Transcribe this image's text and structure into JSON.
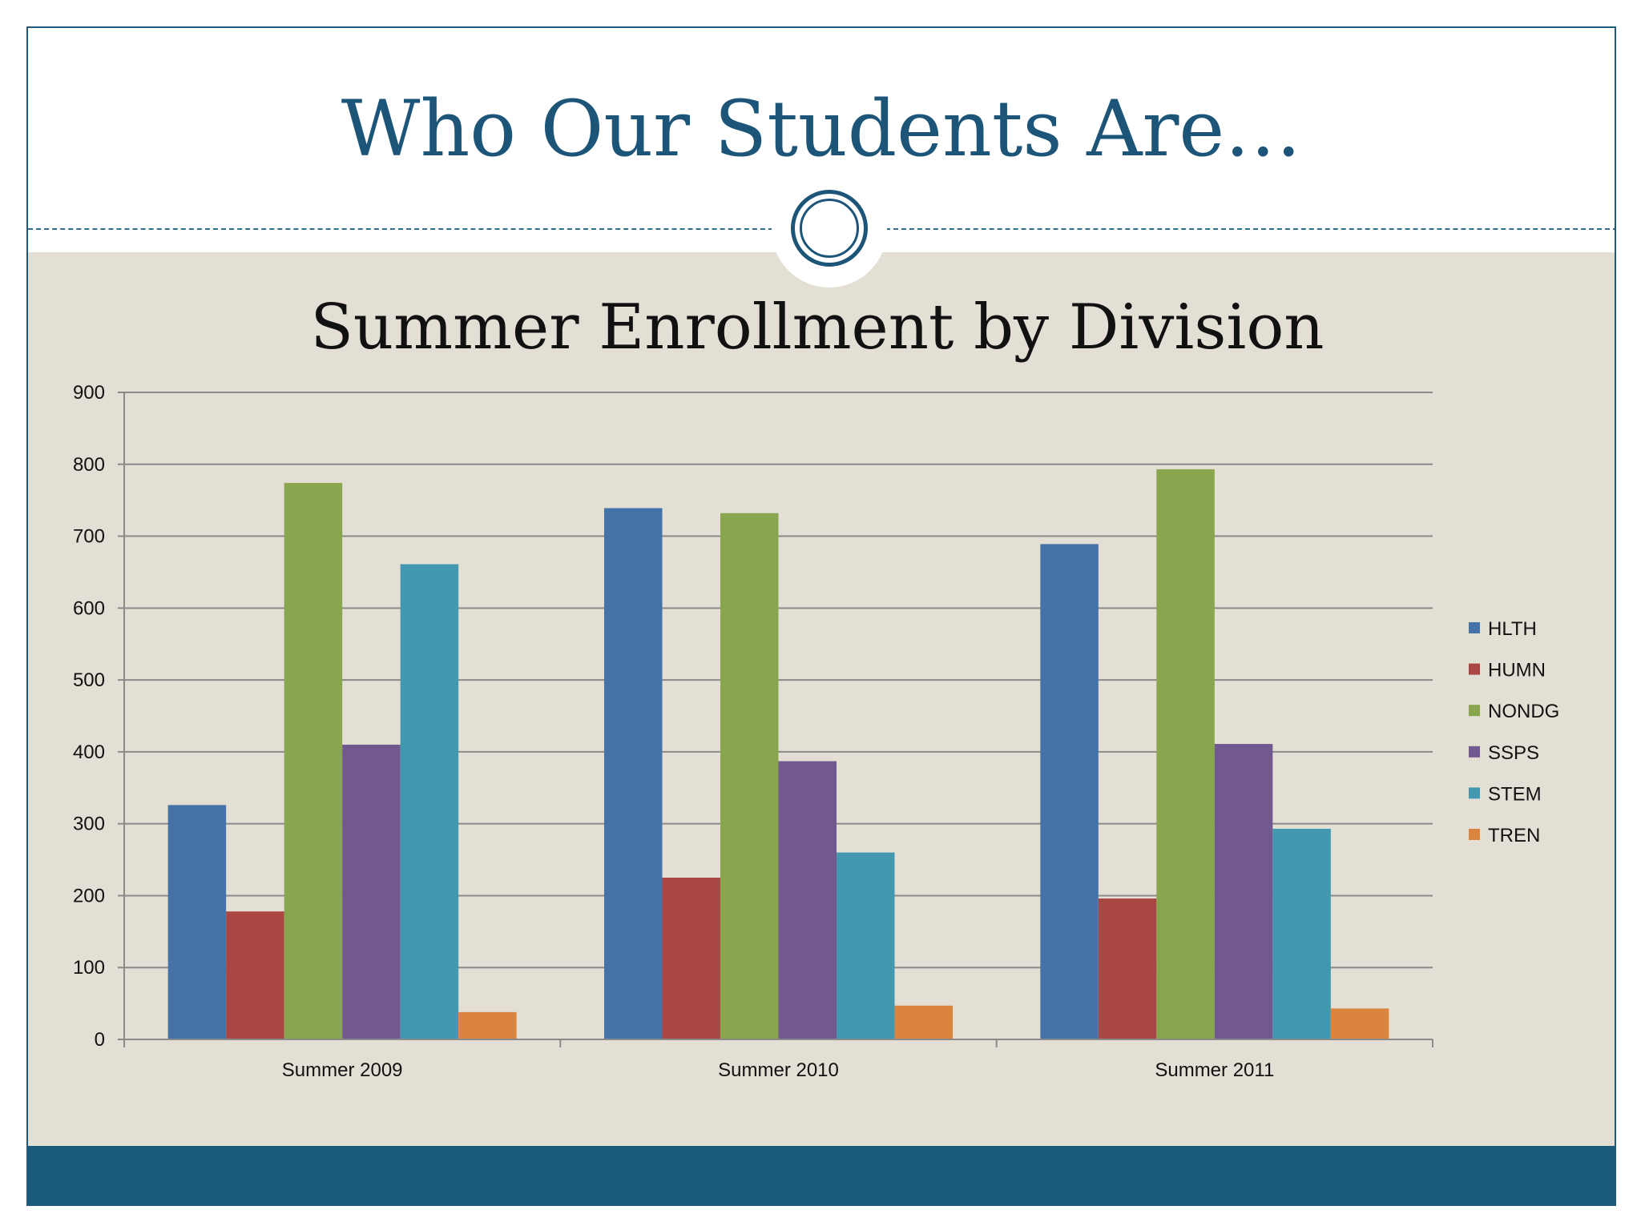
{
  "slide": {
    "title": "Who Our Students Are…"
  },
  "colors": {
    "title": "#1c5578",
    "content_background": "#e3dfd4",
    "footer": "#1a5a7c",
    "gridline": "#8a8a8a"
  },
  "chart_data": {
    "type": "bar",
    "title": "Summer Enrollment by Division",
    "xlabel": "",
    "ylabel": "",
    "ylim": [
      0,
      900
    ],
    "y_ticks": [
      0,
      100,
      200,
      300,
      400,
      500,
      600,
      700,
      800,
      900
    ],
    "grid": true,
    "legend_position": "right",
    "categories": [
      "Summer 2009",
      "Summer 2010",
      "Summer 2011"
    ],
    "series": [
      {
        "name": "HLTH",
        "color": "#4572a7",
        "values": [
          326,
          739,
          689
        ]
      },
      {
        "name": "HUMN",
        "color": "#aa4643",
        "values": [
          178,
          225,
          196
        ]
      },
      {
        "name": "NONDG",
        "color": "#89a54e",
        "values": [
          774,
          732,
          793
        ]
      },
      {
        "name": "SSPS",
        "color": "#71588f",
        "values": [
          410,
          387,
          411
        ]
      },
      {
        "name": "STEM",
        "color": "#4198af",
        "values": [
          661,
          260,
          293
        ]
      },
      {
        "name": "TREN",
        "color": "#db843d",
        "values": [
          38,
          47,
          43
        ]
      }
    ]
  }
}
